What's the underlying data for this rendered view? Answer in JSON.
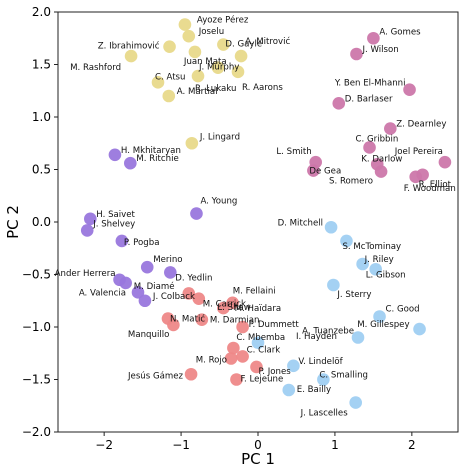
{
  "chart_data": {
    "type": "scatter",
    "xlabel": "PC 1",
    "ylabel": "PC 2",
    "xlim": [
      -2.6,
      2.6
    ],
    "ylim": [
      -2.0,
      2.0
    ],
    "xticks": [
      -2,
      -1,
      0,
      1,
      2
    ],
    "yticks": [
      2.0,
      1.5,
      1.0,
      0.5,
      0.0,
      -0.5,
      -1.0,
      -1.5,
      -2.0
    ],
    "grid": false,
    "legend": "none",
    "series": [
      {
        "color": "#e8d98a",
        "points": [
          {
            "label": "Ayoze Pérez",
            "x": -0.95,
            "y": 1.88
          },
          {
            "label": "Joselu",
            "x": -0.9,
            "y": 1.77
          },
          {
            "label": "Z. Ibrahimović",
            "x": -1.15,
            "y": 1.67
          },
          {
            "label": "D. Gayle",
            "x": -0.45,
            "y": 1.69
          },
          {
            "label": "Juan Mata",
            "x": -0.82,
            "y": 1.62
          },
          {
            "label": "M. Rashford",
            "x": -1.65,
            "y": 1.58
          },
          {
            "label": "A. Mitrović",
            "x": -0.22,
            "y": 1.58
          },
          {
            "label": "J. Murphy",
            "x": -0.52,
            "y": 1.47
          },
          {
            "label": "R. Aarons",
            "x": -0.26,
            "y": 1.43
          },
          {
            "label": "C. Atsu",
            "x": -1.3,
            "y": 1.33
          },
          {
            "label": "R. Lukaku",
            "x": -0.78,
            "y": 1.39
          },
          {
            "label": "A. Martial",
            "x": -1.16,
            "y": 1.2
          },
          {
            "label": "J. Lingard",
            "x": -0.86,
            "y": 0.75
          }
        ]
      },
      {
        "color": "#cc77aa",
        "points": [
          {
            "label": "A. Gomes",
            "x": 1.5,
            "y": 1.75
          },
          {
            "label": "J. Wilson",
            "x": 1.28,
            "y": 1.6
          },
          {
            "label": "Y. Ben El-Mhanni",
            "x": 1.97,
            "y": 1.26
          },
          {
            "label": "D. Barlaser",
            "x": 1.05,
            "y": 1.13
          },
          {
            "label": "Z. Dearnley",
            "x": 1.72,
            "y": 0.89
          },
          {
            "label": "C. Gribbin",
            "x": 1.45,
            "y": 0.71
          },
          {
            "label": "L. Smith",
            "x": 0.75,
            "y": 0.57
          },
          {
            "label": "Joel Pereira",
            "x": 2.43,
            "y": 0.57
          },
          {
            "label": "K. Darlow",
            "x": 1.55,
            "y": 0.55
          },
          {
            "label": "De Gea",
            "x": 0.72,
            "y": 0.49
          },
          {
            "label": "R. Elliot",
            "x": 2.14,
            "y": 0.45
          },
          {
            "label": "S. Romero",
            "x": 1.6,
            "y": 0.48
          },
          {
            "label": "F. Woodman",
            "x": 2.05,
            "y": 0.43
          }
        ]
      },
      {
        "color": "#9977dd",
        "points": [
          {
            "label": "H. Mkhitaryan",
            "x": -1.86,
            "y": 0.64
          },
          {
            "label": "M. Ritchie",
            "x": -1.66,
            "y": 0.56
          },
          {
            "label": "A. Young",
            "x": -0.8,
            "y": 0.08
          },
          {
            "label": "H. Saivet",
            "x": -2.18,
            "y": 0.03
          },
          {
            "label": "J. Shelvey",
            "x": -2.22,
            "y": -0.08
          },
          {
            "label": "P. Pogba",
            "x": -1.77,
            "y": -0.18
          },
          {
            "label": "Merino",
            "x": -1.44,
            "y": -0.43
          },
          {
            "label": "D. Yedlin",
            "x": -1.14,
            "y": -0.48
          },
          {
            "label": "Ander Herrera",
            "x": -1.8,
            "y": -0.55
          },
          {
            "label": "M. Diamé",
            "x": -1.72,
            "y": -0.58
          },
          {
            "label": "A. Valencia",
            "x": -1.56,
            "y": -0.67
          },
          {
            "label": "J. Colback",
            "x": -1.47,
            "y": -0.75
          }
        ]
      },
      {
        "color": "#ee8888",
        "points": [
          {
            "label": "M. Fellaini",
            "x": -0.9,
            "y": -0.68
          },
          {
            "label": "M. Carrick",
            "x": -0.77,
            "y": -0.73
          },
          {
            "label": "M. Haïdara",
            "x": -0.33,
            "y": -0.77
          },
          {
            "label": "L. Shaw",
            "x": -0.45,
            "y": -0.82
          },
          {
            "label": "N. Matić",
            "x": -1.17,
            "y": -0.92
          },
          {
            "label": "M. Darmian",
            "x": -0.73,
            "y": -0.93
          },
          {
            "label": "Manquillo",
            "x": -1.1,
            "y": -0.98
          },
          {
            "label": "P. Dummett",
            "x": -0.2,
            "y": -1.0
          },
          {
            "label": "C. Mbemba",
            "x": -0.32,
            "y": -1.2
          },
          {
            "label": "C. Clark",
            "x": -0.2,
            "y": -1.28
          },
          {
            "label": "M. Rojo",
            "x": -0.35,
            "y": -1.3
          },
          {
            "label": "P. Jones",
            "x": -0.02,
            "y": -1.38
          },
          {
            "label": "Jesús Gámez",
            "x": -0.87,
            "y": -1.45
          },
          {
            "label": "F. Lejeune",
            "x": -0.28,
            "y": -1.5
          }
        ]
      },
      {
        "color": "#9fcff2",
        "points": [
          {
            "label": "D. Mitchell",
            "x": 0.95,
            "y": -0.05
          },
          {
            "label": "S. McTominay",
            "x": 1.15,
            "y": -0.18
          },
          {
            "label": "J. Riley",
            "x": 1.36,
            "y": -0.4
          },
          {
            "label": "L. Gibson",
            "x": 1.53,
            "y": -0.45
          },
          {
            "label": "J. Sterry",
            "x": 0.98,
            "y": -0.6
          },
          {
            "label": "C. Good",
            "x": 1.58,
            "y": -0.9
          },
          {
            "label": "M. Gillespey",
            "x": 2.1,
            "y": -1.02
          },
          {
            "label": "A. Tuanzebe",
            "x": 1.3,
            "y": -1.1
          },
          {
            "label": "I. Hayden",
            "x": 0.0,
            "y": -1.15
          },
          {
            "label": "V. Lindelöf",
            "x": 0.46,
            "y": -1.37
          },
          {
            "label": "C. Smalling",
            "x": 0.85,
            "y": -1.5
          },
          {
            "label": "E. Bailly",
            "x": 0.4,
            "y": -1.6
          },
          {
            "label": "J. Lascelles",
            "x": 1.27,
            "y": -1.72
          }
        ]
      }
    ]
  }
}
